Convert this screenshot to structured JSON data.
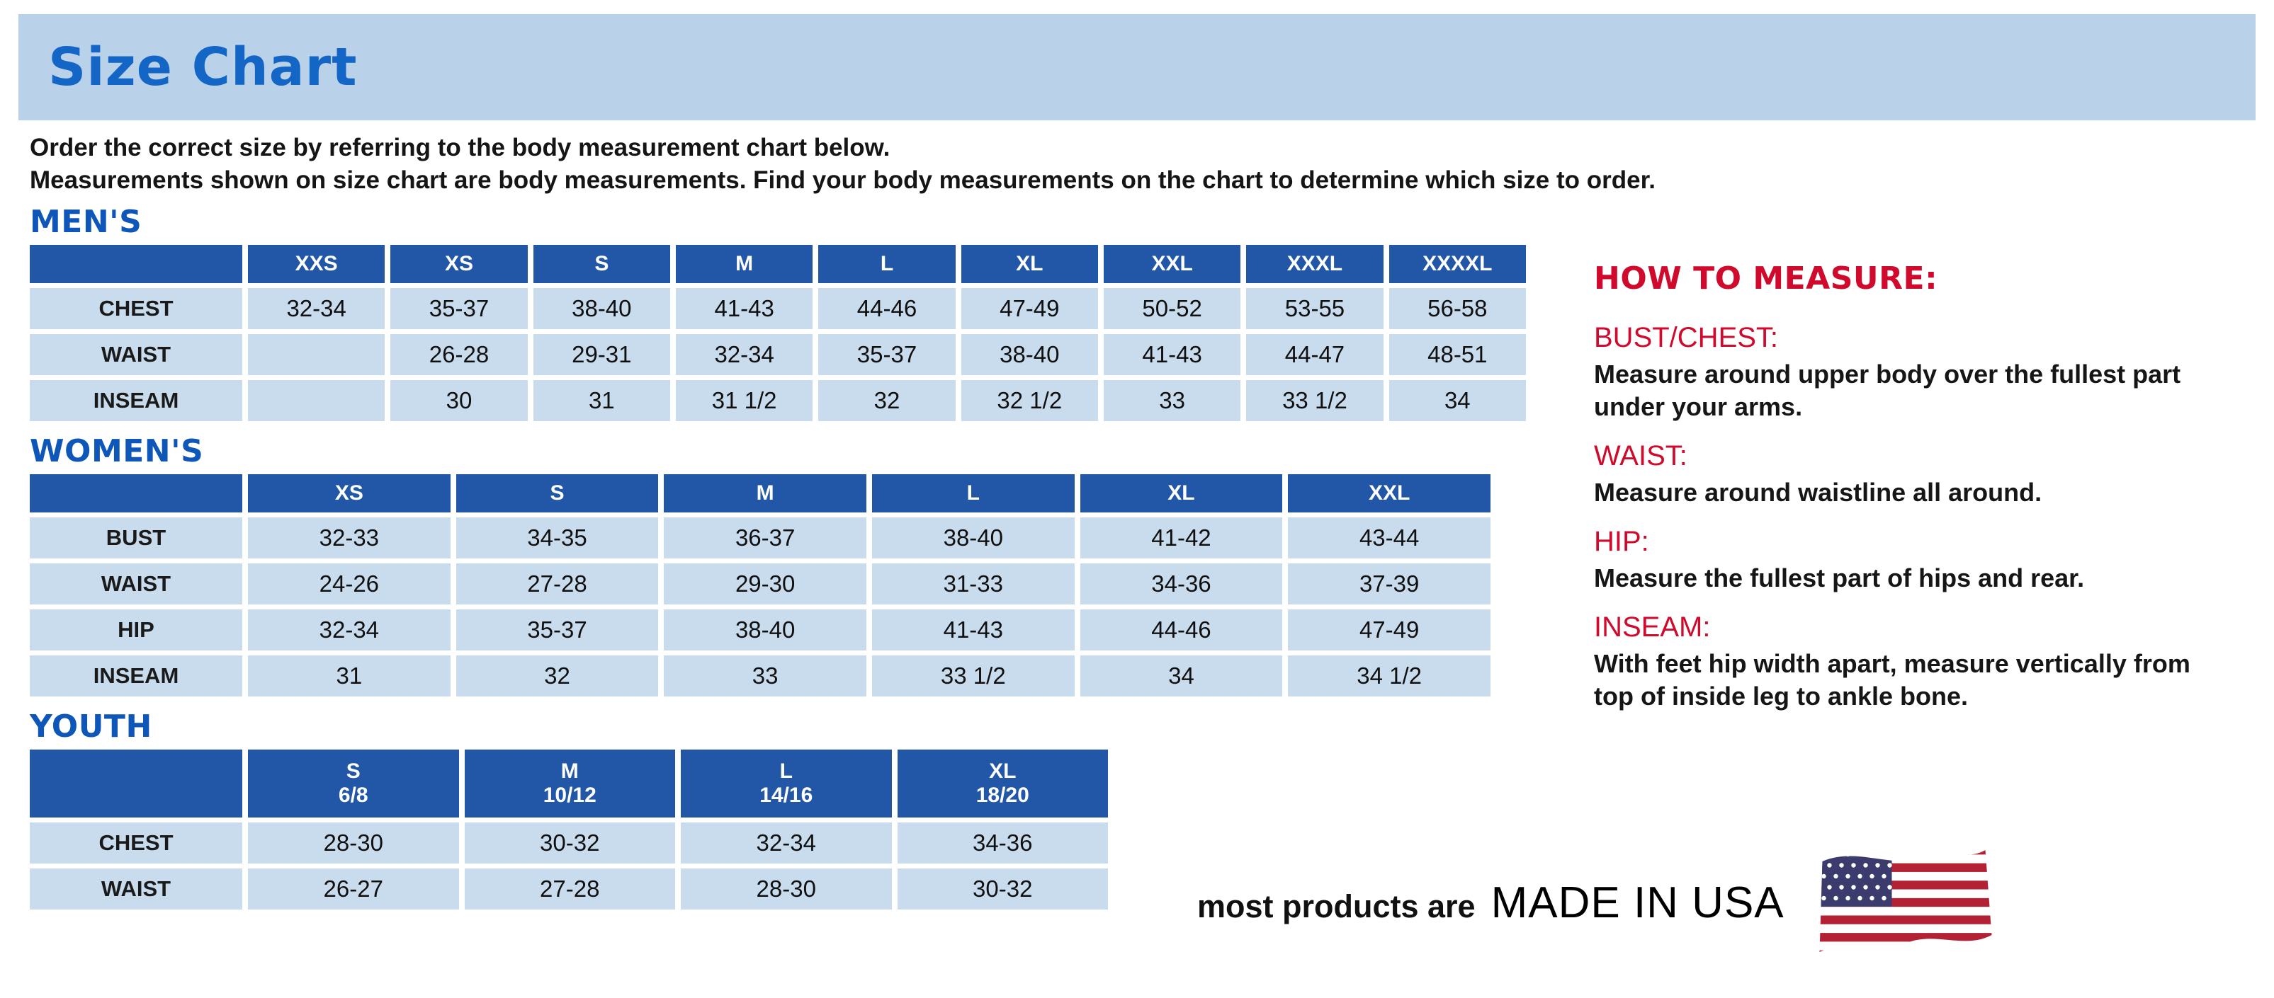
{
  "page": {
    "title": "Size Chart",
    "intro_line1": "Order the correct size by referring to the body measurement chart below.",
    "intro_line2": "Measurements shown on size chart are body measurements.  Find your body measurements on the chart to determine which size to order."
  },
  "tables": [
    {
      "section": "MEN'S",
      "columns": [
        "",
        "XXS",
        "XS",
        "S",
        "M",
        "L",
        "XL",
        "XXL",
        "XXXL",
        "XXXXL"
      ],
      "rows": [
        {
          "label": "CHEST",
          "values": [
            "32-34",
            "35-37",
            "38-40",
            "41-43",
            "44-46",
            "47-49",
            "50-52",
            "53-55",
            "56-58"
          ]
        },
        {
          "label": "WAIST",
          "values": [
            "",
            "26-28",
            "29-31",
            "32-34",
            "35-37",
            "38-40",
            "41-43",
            "44-47",
            "48-51"
          ]
        },
        {
          "label": "INSEAM",
          "values": [
            "",
            "30",
            "31",
            "31 1/2",
            "32",
            "32 1/2",
            "33",
            "33 1/2",
            "34"
          ]
        }
      ]
    },
    {
      "section": "WOMEN'S",
      "columns": [
        "",
        "XS",
        "S",
        "M",
        "L",
        "XL",
        "XXL"
      ],
      "rows": [
        {
          "label": "BUST",
          "values": [
            "32-33",
            "34-35",
            "36-37",
            "38-40",
            "41-42",
            "43-44"
          ]
        },
        {
          "label": "WAIST",
          "values": [
            "24-26",
            "27-28",
            "29-30",
            "31-33",
            "34-36",
            "37-39"
          ]
        },
        {
          "label": "HIP",
          "values": [
            "32-34",
            "35-37",
            "38-40",
            "41-43",
            "44-46",
            "47-49"
          ]
        },
        {
          "label": "INSEAM",
          "values": [
            "31",
            "32",
            "33",
            "33 1/2",
            "34",
            "34 1/2"
          ]
        }
      ]
    },
    {
      "section": "YOUTH",
      "columns": [
        "",
        "S\n6/8",
        "M\n10/12",
        "L\n14/16",
        "XL\n18/20"
      ],
      "rows": [
        {
          "label": "CHEST",
          "values": [
            "28-30",
            "30-32",
            "32-34",
            "34-36"
          ]
        },
        {
          "label": "WAIST",
          "values": [
            "26-27",
            "27-28",
            "28-30",
            "30-32"
          ]
        }
      ]
    }
  ],
  "how_to_measure": {
    "title": "HOW TO MEASURE:",
    "items": [
      {
        "label": "BUST/CHEST:",
        "text": "Measure around upper body over the fullest part under your arms."
      },
      {
        "label": "WAIST:",
        "text": "Measure around waistline all around."
      },
      {
        "label": "HIP:",
        "text": "Measure the fullest part of hips and rear."
      },
      {
        "label": "INSEAM:",
        "text": "With feet hip width apart, measure vertically from top of inside leg to ankle bone."
      }
    ]
  },
  "footer": {
    "made_in_prefix": "most products are",
    "made_in": "MADE IN USA"
  },
  "colors": {
    "banner_blue": "#b9d2ea",
    "title_blue": "#1366c6",
    "header_blue": "#2257a8",
    "row_blue": "#c9dcee",
    "accent_red": "#cf0a2c",
    "flag_red": "#B22234",
    "flag_blue": "#3C3B6E"
  }
}
